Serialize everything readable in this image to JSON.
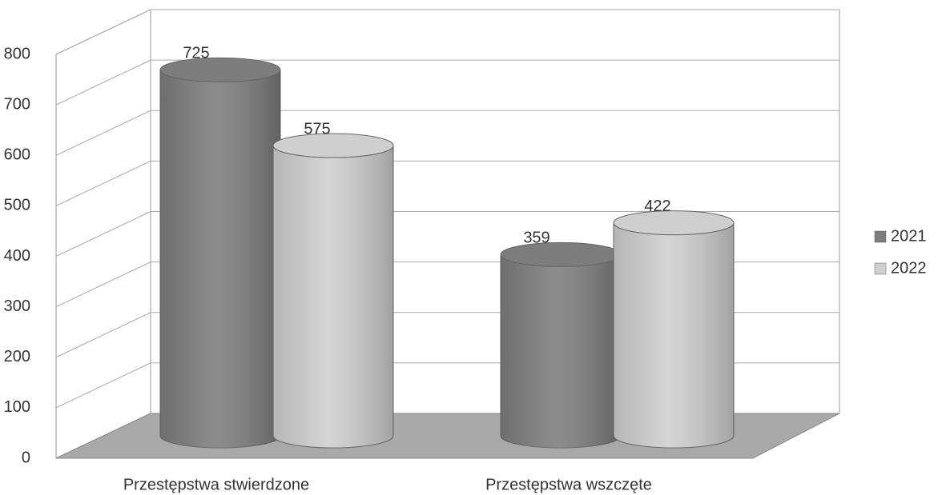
{
  "chart_data": {
    "type": "bar3d",
    "categories": [
      "Przestępstwa stwierdzone",
      "Przestępstwa wszczęte"
    ],
    "series": [
      {
        "name": "2021",
        "color": "#7d7d7d",
        "values": [
          725,
          359
        ]
      },
      {
        "name": "2022",
        "color": "#cfcfcf",
        "values": [
          575,
          422
        ]
      }
    ],
    "ylim": [
      0,
      800
    ],
    "yticks": [
      0,
      100,
      200,
      300,
      400,
      500,
      600,
      700,
      800
    ],
    "grid": true,
    "legend": "right",
    "data_labels": true
  }
}
